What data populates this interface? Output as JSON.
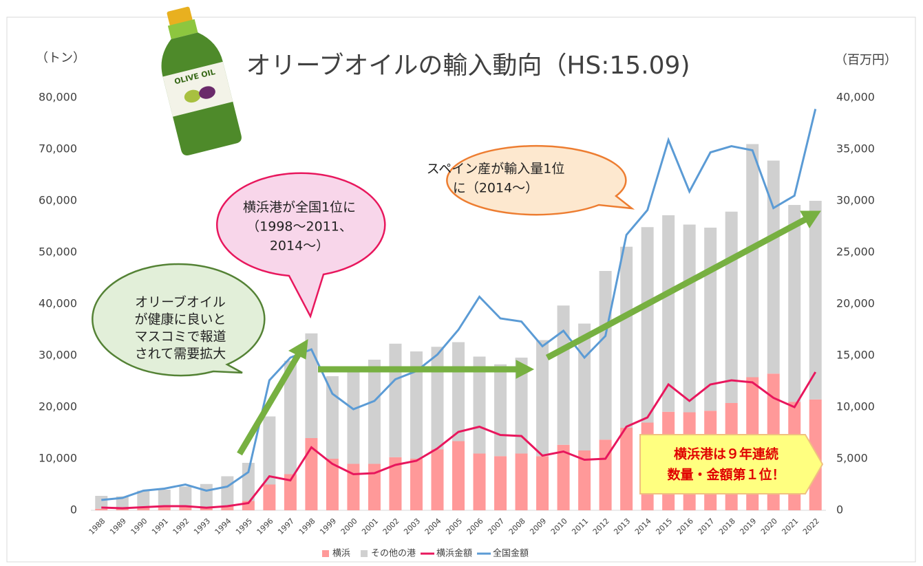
{
  "chart_data": {
    "type": "bar_line",
    "title": "オリーブオイルの輸入動向（HS:15.09)",
    "y_label": "（トン）",
    "y2_label": "（百万円）",
    "bottle_label": "OLIVE OIL",
    "categories": [
      "1988",
      "1989",
      "1990",
      "1991",
      "1992",
      "1993",
      "1994",
      "1995",
      "1996",
      "1997",
      "1998",
      "1999",
      "2000",
      "2001",
      "2002",
      "2003",
      "2004",
      "2005",
      "2006",
      "2007",
      "2008",
      "2009",
      "2010",
      "2011",
      "2012",
      "2013",
      "2014",
      "2015",
      "2016",
      "2017",
      "2018",
      "2019",
      "2020",
      "2021",
      "2022"
    ],
    "series": [
      {
        "name": "横浜",
        "kind": "bar",
        "color": "#ff9999",
        "values": [
          300,
          300,
          500,
          700,
          700,
          600,
          800,
          1800,
          5000,
          7000,
          14000,
          10000,
          9000,
          9000,
          10300,
          10000,
          11800,
          13400,
          11000,
          10500,
          11000,
          10500,
          12700,
          11600,
          13700,
          16000,
          17000,
          19100,
          19000,
          19300,
          20800,
          25800,
          26500,
          21000,
          21500
        ]
      },
      {
        "name": "その他の港",
        "kind": "bar",
        "color": "#d0d0d0",
        "values": [
          2500,
          2400,
          3300,
          3300,
          3900,
          4500,
          5800,
          7400,
          13200,
          22000,
          20300,
          16000,
          18000,
          20200,
          22000,
          20800,
          19900,
          19200,
          18800,
          17800,
          18600,
          22500,
          27000,
          24600,
          32700,
          35100,
          37900,
          38100,
          36400,
          35500,
          37100,
          45200,
          41300,
          38200,
          38500
        ]
      },
      {
        "name": "横浜金額",
        "kind": "line",
        "axis": "y2",
        "color": "#e8175d",
        "values": [
          270,
          200,
          300,
          400,
          400,
          250,
          400,
          700,
          3300,
          2900,
          6100,
          4500,
          3500,
          3600,
          4400,
          4800,
          6000,
          7600,
          8100,
          7300,
          7200,
          5300,
          5700,
          4900,
          5000,
          8100,
          9000,
          12200,
          10600,
          12200,
          12600,
          12400,
          10900,
          10000,
          13400
        ]
      },
      {
        "name": "全国金額",
        "kind": "line",
        "axis": "y2",
        "color": "#5b9bd5",
        "values": [
          1000,
          1200,
          1900,
          2100,
          2500,
          1900,
          2300,
          3700,
          12600,
          14800,
          15600,
          11300,
          9800,
          10600,
          12700,
          13500,
          15100,
          17500,
          20700,
          18600,
          18300,
          15900,
          17400,
          14800,
          16900,
          26700,
          29100,
          35900,
          30900,
          34700,
          35300,
          34900,
          29300,
          30500,
          38900
        ]
      }
    ],
    "ylim": [
      0,
      80000
    ],
    "yticks": [
      0,
      {
        "value": 10000,
        "label": "10,000"
      },
      {
        "value": 20000,
        "label": "20,000"
      },
      {
        "value": 30000,
        "label": "30,000"
      },
      {
        "value": 40000,
        "label": "40,000"
      },
      {
        "value": 50000,
        "label": "50,000"
      },
      {
        "value": 60000,
        "label": "60,000"
      },
      {
        "value": 70000,
        "label": "70,000"
      },
      {
        "value": 80000,
        "label": "80,000"
      }
    ],
    "y2lim": [
      0,
      40000
    ],
    "y2ticks": [
      0,
      {
        "value": 5000,
        "label": "5,000"
      },
      {
        "value": 10000,
        "label": "10,000"
      },
      {
        "value": 15000,
        "label": "15,000"
      },
      {
        "value": 20000,
        "label": "20,000"
      },
      {
        "value": 25000,
        "label": "25,000"
      },
      {
        "value": 30000,
        "label": "30,000"
      },
      {
        "value": 35000,
        "label": "35,000"
      },
      {
        "value": 40000,
        "label": "40,000"
      }
    ],
    "annotations": [
      {
        "lines": [
          "オリーブオイル",
          "が健康に良いと",
          "マスコミで報道",
          "されて需要拡大"
        ]
      },
      {
        "lines": [
          "横浜港が全国1位に",
          "（1998～2011、",
          "2014～）"
        ]
      },
      {
        "lines": [
          "スペイン産が輸入量1位",
          "に（2014～）"
        ]
      },
      {
        "lines": [
          "横浜港は９年連続",
          "数量・金額第１位！"
        ]
      }
    ]
  }
}
